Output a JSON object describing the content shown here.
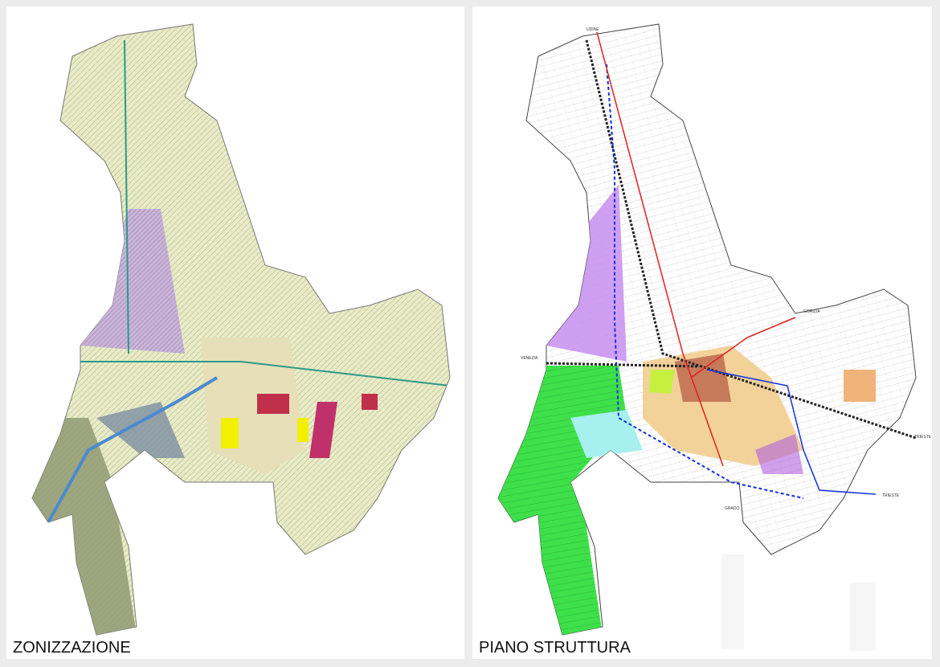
{
  "panels": [
    {
      "label": "ZONIZZAZIONE"
    },
    {
      "label": "PIANO STRUTTURA",
      "places": [
        "UDINE",
        "GORIZIA",
        "VENEZIA",
        "TRIESTE",
        "TRIESTE",
        "GRADO"
      ]
    }
  ]
}
